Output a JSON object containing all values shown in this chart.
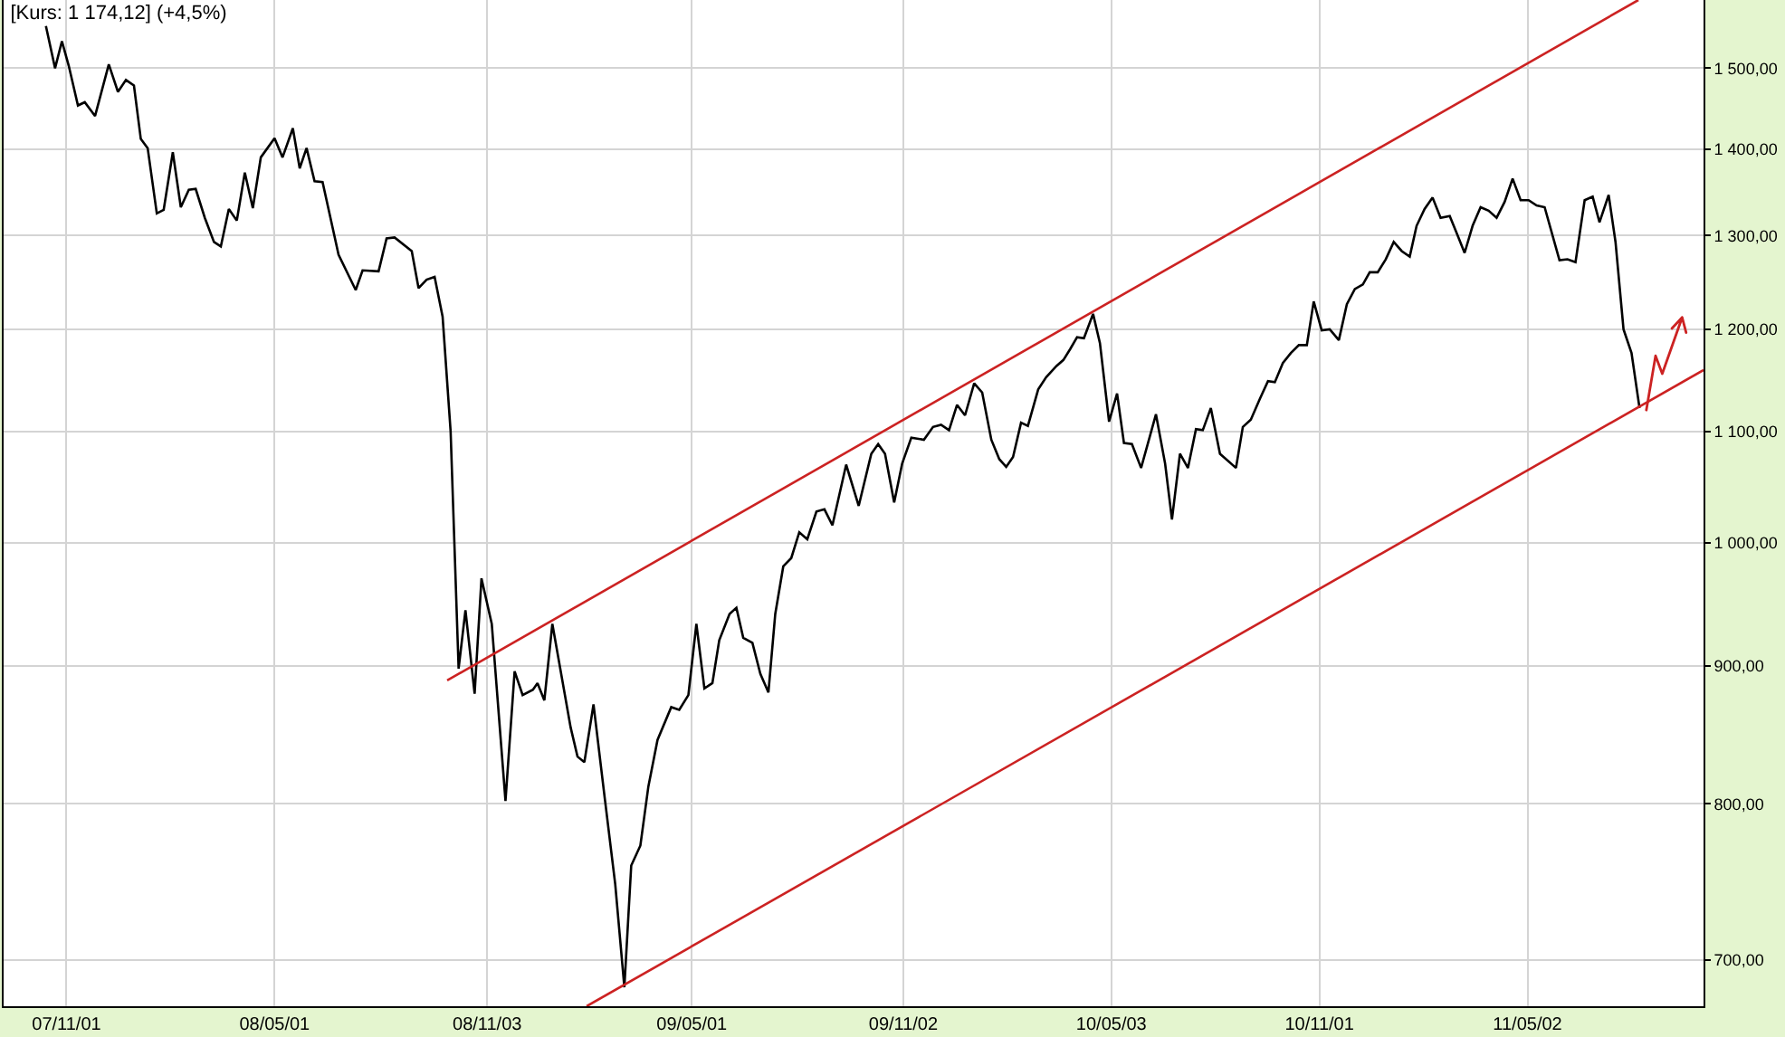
{
  "chart_data": {
    "type": "line",
    "title": "[Kurs: 1 174,12] (+4,5%)",
    "x": [
      "2007-10-14",
      "2007-10-22",
      "2007-10-28",
      "2007-11-03",
      "2007-11-11",
      "2007-11-17",
      "2007-11-26",
      "2007-12-08",
      "2007-12-16",
      "2007-12-23",
      "2007-12-30",
      "2008-01-05",
      "2008-01-11",
      "2008-01-19",
      "2008-01-25",
      "2008-02-02",
      "2008-02-09",
      "2008-02-16",
      "2008-02-22",
      "2008-03-01",
      "2008-03-09",
      "2008-03-15",
      "2008-03-22",
      "2008-03-29",
      "2008-04-05",
      "2008-04-12",
      "2008-04-19",
      "2008-05-01",
      "2008-05-08",
      "2008-05-17",
      "2008-05-23",
      "2008-05-29",
      "2008-06-05",
      "2008-06-12",
      "2008-06-26",
      "2008-07-11",
      "2008-07-17",
      "2008-07-31",
      "2008-08-07",
      "2008-08-14",
      "2008-08-29",
      "2008-09-04",
      "2008-09-11",
      "2008-09-18",
      "2008-09-25",
      "2008-10-02",
      "2008-10-09",
      "2008-10-15",
      "2008-10-23",
      "2008-10-29",
      "2008-11-07",
      "2008-11-19",
      "2008-11-27",
      "2008-12-04",
      "2008-12-13",
      "2008-12-17",
      "2008-12-23",
      "2008-12-30",
      "2009-01-15",
      "2009-01-21",
      "2009-01-27",
      "2009-02-04",
      "2009-02-14",
      "2009-02-23",
      "2009-03-03",
      "2009-03-09",
      "2009-03-17",
      "2009-03-24",
      "2009-04-01",
      "2009-04-13",
      "2009-04-20",
      "2009-04-28",
      "2009-05-05",
      "2009-05-12",
      "2009-05-19",
      "2009-05-25",
      "2009-06-03",
      "2009-06-09",
      "2009-06-15",
      "2009-06-23",
      "2009-06-30",
      "2009-07-07",
      "2009-07-13",
      "2009-07-20",
      "2009-07-27",
      "2009-08-03",
      "2009-08-10",
      "2009-08-18",
      "2009-08-25",
      "2009-09-01",
      "2009-09-13",
      "2009-09-24",
      "2009-10-05",
      "2009-10-11",
      "2009-10-17",
      "2009-10-25",
      "2009-11-01",
      "2009-11-09",
      "2009-11-20",
      "2009-11-28",
      "2009-12-05",
      "2009-12-12",
      "2009-12-19",
      "2009-12-26",
      "2010-01-03",
      "2010-01-10",
      "2010-01-18",
      "2010-01-25",
      "2010-01-31",
      "2010-02-06",
      "2010-02-13",
      "2010-02-19",
      "2010-02-28",
      "2010-03-07",
      "2010-03-16",
      "2010-03-22",
      "2010-03-28",
      "2010-04-03",
      "2010-04-09",
      "2010-04-17",
      "2010-04-23",
      "2010-05-01",
      "2010-05-08",
      "2010-05-14",
      "2010-05-21",
      "2010-05-29",
      "2010-06-11",
      "2010-06-19",
      "2010-06-25",
      "2010-07-02",
      "2010-07-09",
      "2010-07-16",
      "2010-07-22",
      "2010-07-29",
      "2010-08-06",
      "2010-08-20",
      "2010-08-26",
      "2010-09-02",
      "2010-09-10",
      "2010-09-17",
      "2010-09-23",
      "2010-09-30",
      "2010-10-07",
      "2010-10-14",
      "2010-10-21",
      "2010-10-27",
      "2010-11-03",
      "2010-11-10",
      "2010-11-18",
      "2010-11-25",
      "2010-12-02",
      "2010-12-09",
      "2010-12-15",
      "2010-12-22",
      "2010-12-29",
      "2011-01-05",
      "2011-01-12",
      "2011-01-19",
      "2011-01-25",
      "2011-02-01",
      "2011-02-08",
      "2011-02-15",
      "2011-02-23",
      "2011-03-02",
      "2011-03-08",
      "2011-03-15",
      "2011-03-22",
      "2011-03-29",
      "2011-04-05",
      "2011-04-12",
      "2011-04-19",
      "2011-04-26",
      "2011-05-03",
      "2011-05-10",
      "2011-05-17",
      "2011-05-30",
      "2011-06-06",
      "2011-06-13",
      "2011-06-21",
      "2011-06-28",
      "2011-07-04",
      "2011-07-12",
      "2011-07-18",
      "2011-07-25",
      "2011-08-01",
      "2011-08-08"
    ],
    "series": [
      {
        "color": "#000000",
        "values": [
          1555,
          1500,
          1535,
          1503,
          1453,
          1457,
          1440,
          1505,
          1470,
          1485,
          1478,
          1412,
          1401,
          1325,
          1329,
          1396,
          1332,
          1352,
          1353,
          1320,
          1293,
          1288,
          1330,
          1317,
          1372,
          1331,
          1390,
          1413,
          1390,
          1425,
          1377,
          1401,
          1362,
          1361,
          1279,
          1241,
          1262,
          1261,
          1297,
          1298,
          1283,
          1243,
          1252,
          1255,
          1213,
          1100,
          898,
          944,
          879,
          970,
          933,
          802,
          896,
          878,
          882,
          887,
          874,
          933,
          854,
          833,
          829,
          871,
          803,
          747,
          684,
          759,
          772,
          812,
          845,
          869,
          867,
          878,
          933,
          883,
          887,
          920,
          941,
          946,
          922,
          918,
          894,
          880,
          941,
          980,
          987,
          1009,
          1003,
          1027,
          1029,
          1015,
          1069,
          1032,
          1079,
          1088,
          1079,
          1035,
          1070,
          1094,
          1092,
          1104,
          1106,
          1101,
          1125,
          1115,
          1146,
          1137,
          1092,
          1074,
          1067,
          1076,
          1108,
          1105,
          1140,
          1152,
          1163,
          1169,
          1180,
          1192,
          1191,
          1216,
          1186,
          1109,
          1136,
          1089,
          1088,
          1066,
          1116,
          1070,
          1020,
          1079,
          1066,
          1102,
          1101,
          1122,
          1079,
          1066,
          1104,
          1111,
          1131,
          1148,
          1147,
          1166,
          1176,
          1184,
          1184,
          1229,
          1199,
          1200,
          1189,
          1226,
          1242,
          1247,
          1260,
          1260,
          1274,
          1293,
          1283,
          1277,
          1311,
          1330,
          1343,
          1320,
          1322,
          1300,
          1281,
          1311,
          1332,
          1328,
          1320,
          1338,
          1365,
          1340,
          1340,
          1334,
          1332,
          1273,
          1274,
          1271,
          1340,
          1344,
          1315,
          1346,
          1293,
          1200,
          1176,
          1122
        ]
      },
      {
        "type": "line",
        "color": "#cc2222",
        "x": [
          "2008-09-29",
          "2011-08-07"
        ],
        "values": [
          889,
          1590
        ]
      },
      {
        "type": "line",
        "color": "#cc2222",
        "x": [
          "2009-01-29",
          "2011-10-03"
        ],
        "values": [
          673,
          1159
        ]
      }
    ],
    "log": "y",
    "xlim": [
      "2007-09-07",
      "2011-10-03"
    ],
    "xticks": [
      {
        "value": "2007-11-01",
        "label": "07/11/01"
      },
      {
        "value": "2008-05-01",
        "label": "08/05/01"
      },
      {
        "value": "2008-11-03",
        "label": "08/11/03"
      },
      {
        "value": "2009-05-01",
        "label": "09/05/01"
      },
      {
        "value": "2009-11-02",
        "label": "09/11/02"
      },
      {
        "value": "2010-05-03",
        "label": "10/05/03"
      },
      {
        "value": "2010-11-01",
        "label": "10/11/01"
      },
      {
        "value": "2011-05-02",
        "label": "11/05/02"
      }
    ],
    "ylim": [
      673,
      1590
    ],
    "yticks": [
      {
        "value": 700,
        "label": "700,00"
      },
      {
        "value": 800,
        "label": "800,00"
      },
      {
        "value": 900,
        "label": "900,00"
      },
      {
        "value": 1000,
        "label": "1 000,00"
      },
      {
        "value": 1100,
        "label": "1 100,00"
      },
      {
        "value": 1200,
        "label": "1 200,00"
      },
      {
        "value": 1300,
        "label": "1 300,00"
      },
      {
        "value": 1400,
        "label": "1 400,00"
      },
      {
        "value": 1500,
        "label": "1 500,00"
      }
    ],
    "grid": true,
    "marker": "none",
    "line_style": "solid"
  }
}
